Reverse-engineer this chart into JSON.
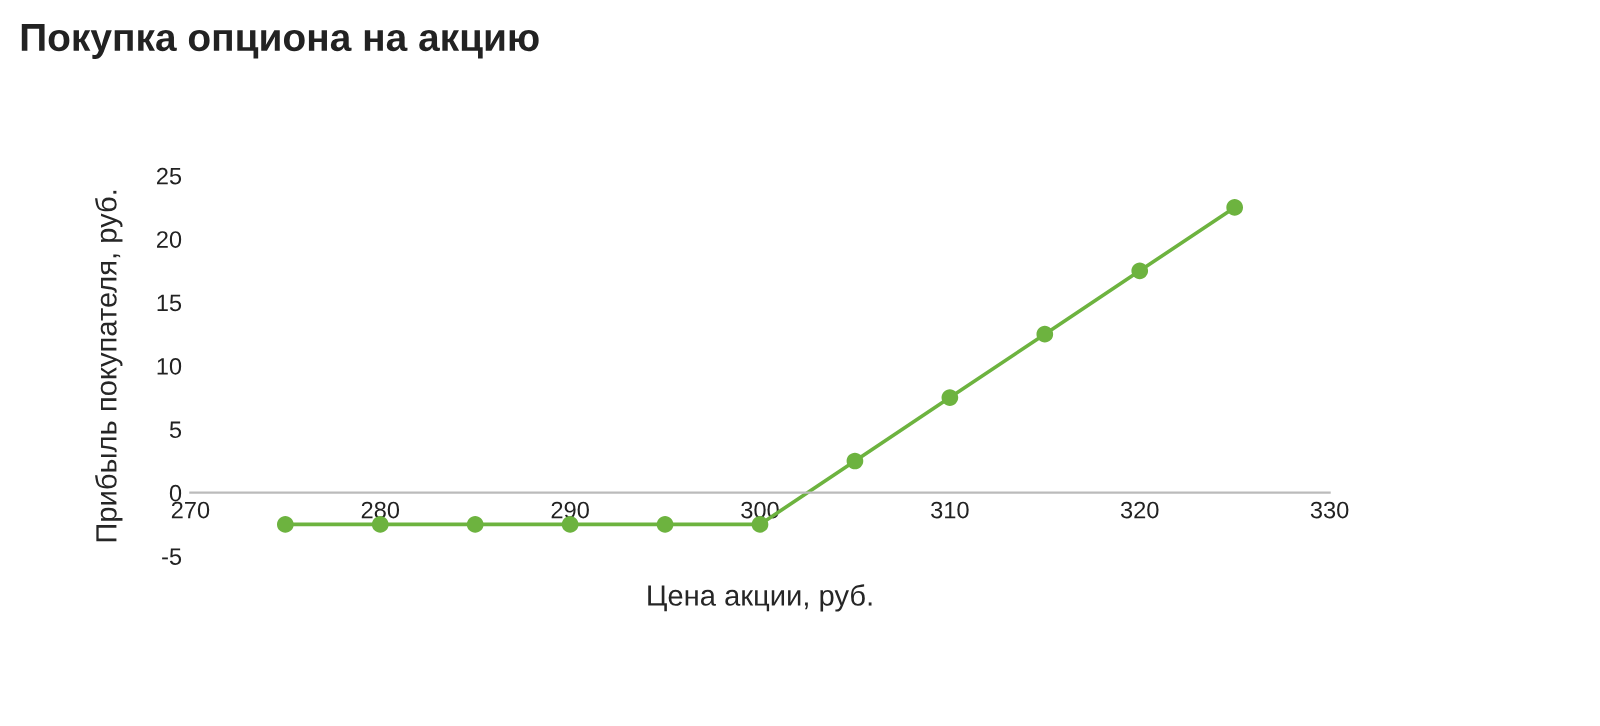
{
  "chart_data": {
    "type": "line",
    "title": "Покупка опциона на акцию",
    "xlabel": "Цена акции, руб.",
    "ylabel": "Прибыль покупателя, руб.",
    "x": [
      275,
      280,
      285,
      290,
      295,
      300,
      305,
      310,
      315,
      320,
      325
    ],
    "series": [
      {
        "color": "#6db33f",
        "values": [
          -2.5,
          -2.5,
          -2.5,
          -2.5,
          -2.5,
          -2.5,
          2.5,
          7.5,
          12.5,
          17.5,
          22.5
        ]
      }
    ],
    "xlim": [
      270,
      330
    ],
    "xticks": [
      270,
      280,
      290,
      300,
      310,
      320,
      330
    ],
    "ylim": [
      -5,
      25
    ],
    "yticks": [
      -5,
      0,
      5,
      10,
      15,
      20,
      25
    ],
    "marker": "circle",
    "line_style": "solid",
    "grid": false,
    "legend": false
  }
}
